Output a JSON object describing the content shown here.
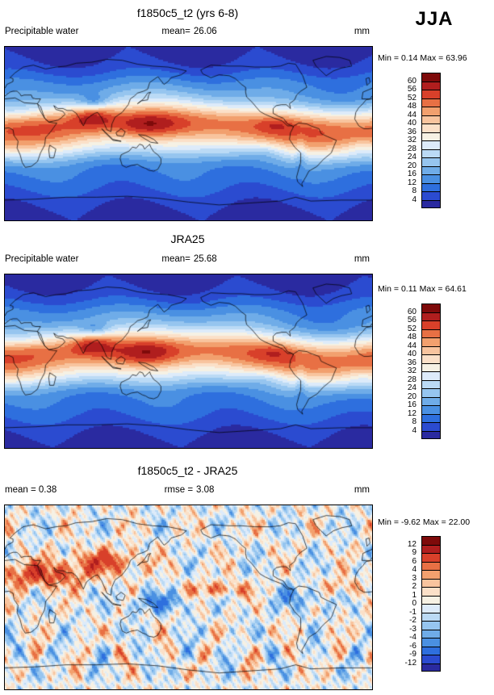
{
  "season": "JJA",
  "palette": [
    "#2A2AA0",
    "#2B4BD0",
    "#2E6FDE",
    "#4A90E2",
    "#6FACE8",
    "#96C5EF",
    "#BBDAF5",
    "#DDEBFA",
    "#F6F1E4",
    "#FBE0C8",
    "#F8C49E",
    "#F2A06E",
    "#E87044",
    "#D8402A",
    "#B01E1E",
    "#7E0A0A"
  ],
  "panels": [
    {
      "title": "f1850c5_t2 (yrs 6-8)",
      "var_label": "Precipitable water",
      "stats": {
        "l1": "mean=",
        "v1": "26.06"
      },
      "units": "mm",
      "min_label": "Min =",
      "min_value": "0.14",
      "max_label": "Max =",
      "max_value": "63.96",
      "ticks": [
        "60",
        "56",
        "52",
        "48",
        "44",
        "40",
        "36",
        "32",
        "28",
        "24",
        "20",
        "16",
        "12",
        "8",
        "4"
      ]
    },
    {
      "title": "JRA25",
      "var_label": "Precipitable water",
      "stats": {
        "l1": "mean=",
        "v1": "25.68"
      },
      "units": "mm",
      "min_label": "Min =",
      "min_value": "0.11",
      "max_label": "Max =",
      "max_value": "64.61",
      "ticks": [
        "60",
        "56",
        "52",
        "48",
        "44",
        "40",
        "36",
        "32",
        "28",
        "24",
        "20",
        "16",
        "12",
        "8",
        "4"
      ]
    },
    {
      "title": "f1850c5_t2 - JRA25",
      "stats": {
        "l1": "mean =",
        "v1": "0.38",
        "l2": "rmse =",
        "v2": "3.08"
      },
      "units": "mm",
      "min_label": "Min =",
      "min_value": "-9.62",
      "max_label": "Max =",
      "max_value": "22.00",
      "ticks": [
        "12",
        "9",
        "6",
        "4",
        "3",
        "2",
        "1",
        "0",
        "-1",
        "-2",
        "-3",
        "-4",
        "-6",
        "-9",
        "-12"
      ]
    }
  ],
  "chart_data": [
    {
      "type": "heatmap",
      "subtype": "filled-contour global map, equirectangular, lon 0-360E, lat -90 to 90",
      "title": "f1850c5_t2 (yrs 6-8)",
      "variable": "Precipitable water",
      "units": "mm",
      "season": "JJA",
      "mean": 26.06,
      "min": 0.14,
      "max": 63.96,
      "contour_levels": [
        4,
        8,
        12,
        16,
        20,
        24,
        28,
        32,
        36,
        40,
        44,
        48,
        52,
        56,
        60
      ],
      "legend_position": "right vertical labelbar",
      "zonal_mean_estimate": {
        "lat": [
          -90,
          -60,
          -40,
          -20,
          0,
          10,
          20,
          40,
          60,
          90
        ],
        "value": [
          2,
          6,
          10,
          22,
          48,
          52,
          44,
          18,
          10,
          3
        ]
      }
    },
    {
      "type": "heatmap",
      "subtype": "filled-contour global map, equirectangular, lon 0-360E, lat -90 to 90",
      "title": "JRA25",
      "variable": "Precipitable water",
      "units": "mm",
      "season": "JJA",
      "mean": 25.68,
      "min": 0.11,
      "max": 64.61,
      "contour_levels": [
        4,
        8,
        12,
        16,
        20,
        24,
        28,
        32,
        36,
        40,
        44,
        48,
        52,
        56,
        60
      ],
      "legend_position": "right vertical labelbar",
      "zonal_mean_estimate": {
        "lat": [
          -90,
          -60,
          -40,
          -20,
          0,
          10,
          20,
          40,
          60,
          90
        ],
        "value": [
          2,
          6,
          10,
          22,
          48,
          52,
          44,
          18,
          10,
          3
        ]
      }
    },
    {
      "type": "heatmap",
      "subtype": "filled-contour global difference map, equirectangular, lon 0-360E, lat -90 to 90",
      "title": "f1850c5_t2 - JRA25",
      "variable": "Precipitable water difference",
      "units": "mm",
      "season": "JJA",
      "mean": 0.38,
      "rmse": 3.08,
      "min": -9.62,
      "max": 22.0,
      "contour_levels": [
        -12,
        -9,
        -6,
        -4,
        -3,
        -2,
        -1,
        0,
        1,
        2,
        3,
        4,
        6,
        9,
        12
      ],
      "legend_position": "right vertical labelbar"
    }
  ]
}
